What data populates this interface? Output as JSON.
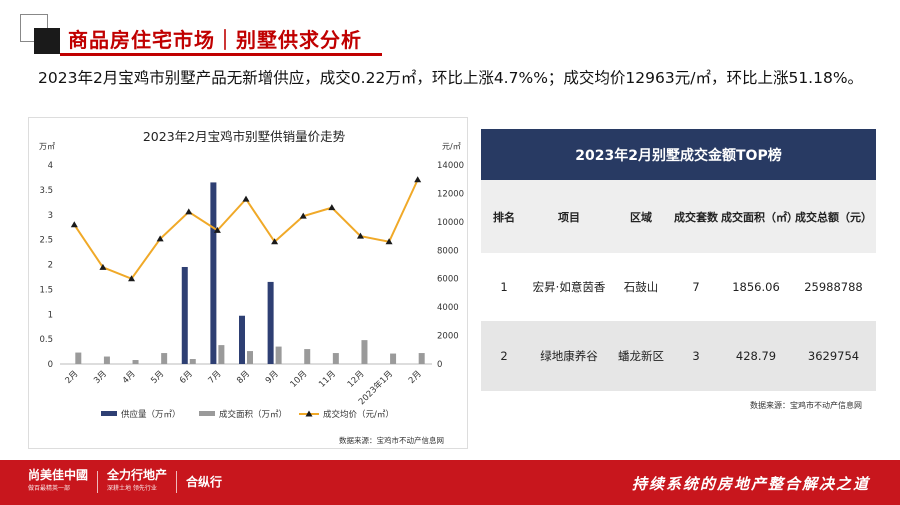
{
  "header": {
    "title": "商品房住宅市场｜别墅供求分析"
  },
  "summary": {
    "text": "2023年2月宝鸡市别墅产品无新增供应，成交0.22万㎡，环比上涨4.7%%；成交均价12963元/㎡，环比上涨51.18%。"
  },
  "chart_data": {
    "type": "bar",
    "title": "2023年2月宝鸡市别墅供销量价走势",
    "categories": [
      "2月",
      "3月",
      "4月",
      "5月",
      "6月",
      "7月",
      "8月",
      "9月",
      "10月",
      "11月",
      "12月",
      "2023年1月",
      "2月"
    ],
    "y_left_label": "万㎡",
    "y_right_label": "元/㎡",
    "y_left_range": [
      0,
      4
    ],
    "y_left_ticks": [
      "0",
      "0.5",
      "1",
      "1.5",
      "2",
      "2.5",
      "3",
      "3.5",
      "4"
    ],
    "y_right_range": [
      0,
      14000
    ],
    "y_right_ticks": [
      "0",
      "2000",
      "4000",
      "6000",
      "8000",
      "10000",
      "12000",
      "14000"
    ],
    "series": [
      {
        "name": "供应量（万㎡）",
        "kind": "bar",
        "axis": "left",
        "color": "#2e3f73",
        "values": [
          0,
          0,
          0,
          0,
          1.95,
          3.65,
          0.97,
          1.65,
          0,
          0,
          0,
          0,
          0
        ]
      },
      {
        "name": "成交面积（万㎡）",
        "kind": "bar",
        "axis": "left",
        "color": "#9a9a9a",
        "values": [
          0.23,
          0.15,
          0.08,
          0.22,
          0.1,
          0.38,
          0.26,
          0.35,
          0.3,
          0.22,
          0.48,
          0.21,
          0.22
        ]
      },
      {
        "name": "成交均价（元/㎡）",
        "kind": "line",
        "axis": "right",
        "color": "#f0a928",
        "marker_color": "#1a1a1a",
        "values": [
          9800,
          6800,
          6000,
          8800,
          10700,
          9400,
          11600,
          8600,
          10400,
          11000,
          9000,
          8600,
          12963
        ]
      }
    ],
    "source": "数据来源：宝鸡市不动产信息网"
  },
  "table": {
    "title": "2023年2月别墅成交金额TOP榜",
    "headers": [
      "排名",
      "项目",
      "区域",
      "成交套数",
      "成交面积（㎡）",
      "成交总额（元）"
    ],
    "rows": [
      [
        "1",
        "宏昇·如意茵香",
        "石鼓山",
        "7",
        "1856.06",
        "25988788"
      ],
      [
        "2",
        "绿地康养谷",
        "蟠龙新区",
        "3",
        "428.79",
        "3629754"
      ]
    ],
    "source": "数据来源：宝鸡市不动产信息网"
  },
  "footer": {
    "logo1": "尚美佳中國",
    "logo1_sub": "做百最精英一部",
    "logo2": "全力行地产",
    "logo2_sub": "深耕土地 领先行业",
    "logo3": "合纵行",
    "slogan": "持续系统的房地产整合解决之道"
  }
}
